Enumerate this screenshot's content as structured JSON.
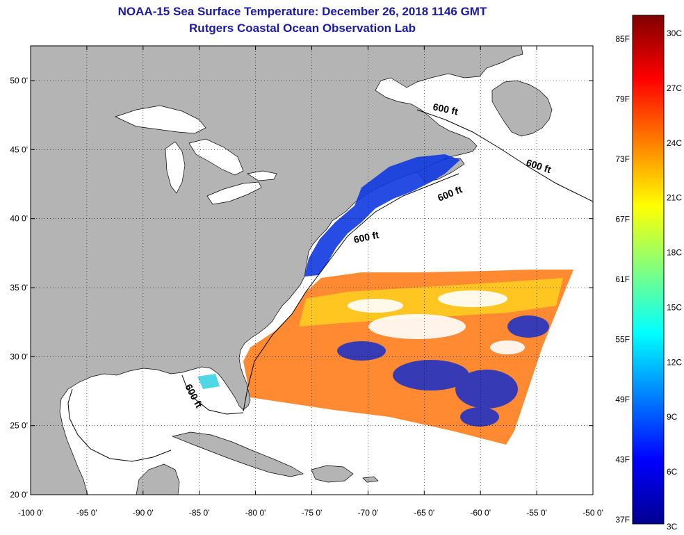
{
  "title": "NOAA-15 Sea Surface Temperature:  December 26, 2018 1146 GMT",
  "subtitle": "Rutgers Coastal Ocean Observation Lab",
  "latitude_labels": [
    "50 0'",
    "45 0'",
    "40 0'",
    "35 0'",
    "30 0'",
    "25 0'",
    "20 0'"
  ],
  "latitude_values": [
    50,
    45,
    40,
    35,
    30,
    25,
    20
  ],
  "longitude_labels": [
    "-100 0'",
    "-95 0'",
    "-90 0'",
    "-85 0'",
    "-80 0'",
    "-75 0'",
    "-70 0'",
    "-65 0'",
    "-60 0'",
    "-55 0'",
    "-50 0'"
  ],
  "longitude_values": [
    -100,
    -95,
    -90,
    -85,
    -80,
    -75,
    -70,
    -65,
    -60,
    -55,
    -50
  ],
  "contour_labels": [
    "600 ft",
    "600 ft",
    "600 ft",
    "600 ft",
    "600 ft"
  ],
  "colorbar": {
    "fahrenheit_labels": [
      "85F",
      "79F",
      "73F",
      "67F",
      "61F",
      "55F",
      "49F",
      "43F",
      "37F"
    ],
    "celsius_labels": [
      "30C",
      "27C",
      "24C",
      "21C",
      "18C",
      "15C",
      "12C",
      "9C",
      "6C",
      "3C"
    ],
    "range_celsius": [
      3,
      31
    ],
    "colormap": "jet"
  },
  "colors": {
    "land": "#b4b4b4",
    "ocean_no_data": "#ffffff",
    "title": "#1a1aa8",
    "cold": "#1428c8",
    "warm": "#ff7814"
  }
}
